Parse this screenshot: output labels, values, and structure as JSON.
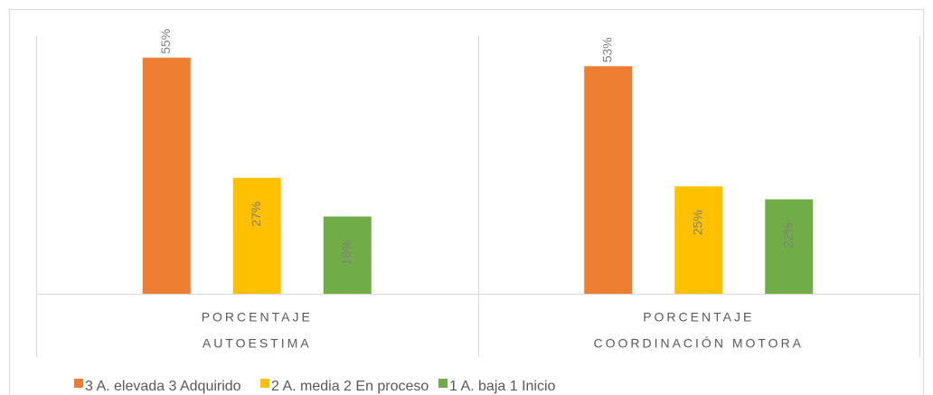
{
  "chart_data": {
    "type": "bar",
    "categories": [
      "PORCENTAJE",
      "PORCENTAJE"
    ],
    "groups": [
      "AUTOESTIMA",
      "COORDINACIÓN MOTORA"
    ],
    "series": [
      {
        "name": "3 A. elevada 3 Adquirido",
        "color": "#ed7d31",
        "values": [
          55,
          53
        ],
        "value_labels": [
          "55%",
          "53%"
        ]
      },
      {
        "name": "2 A. media 2 En proceso",
        "color": "#ffc000",
        "values": [
          27,
          25
        ],
        "value_labels": [
          "27%",
          "25%"
        ]
      },
      {
        "name": "1 A. baja 1 Inicio",
        "color": "#70ad47",
        "values": [
          18,
          22
        ],
        "value_labels": [
          "18%",
          "22%"
        ]
      }
    ],
    "ylim": [
      0,
      60
    ],
    "legend": "bottom"
  }
}
